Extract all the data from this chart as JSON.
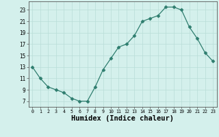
{
  "x": [
    0,
    1,
    2,
    3,
    4,
    5,
    6,
    7,
    8,
    9,
    10,
    11,
    12,
    13,
    14,
    15,
    16,
    17,
    18,
    19,
    20,
    21,
    22,
    23
  ],
  "y": [
    13,
    11,
    9.5,
    9,
    8.5,
    7.5,
    7,
    7,
    9.5,
    12.5,
    14.5,
    16.5,
    17,
    18.5,
    21,
    21.5,
    22,
    23.5,
    23.5,
    23,
    20,
    18,
    15.5,
    14
  ],
  "line_color": "#2e7d6e",
  "marker": "D",
  "marker_size": 2.5,
  "bg_color": "#d4f0ec",
  "grid_color": "#b8ddd7",
  "xlabel": "Humidex (Indice chaleur)",
  "xlabel_fontsize": 7.5,
  "ytick_labels": [
    "7",
    "9",
    "11",
    "13",
    "15",
    "17",
    "19",
    "21",
    "23"
  ],
  "yticks": [
    7,
    9,
    11,
    13,
    15,
    17,
    19,
    21,
    23
  ],
  "xtick_labels": [
    "0",
    "1",
    "2",
    "3",
    "4",
    "5",
    "6",
    "7",
    "8",
    "9",
    "10",
    "11",
    "12",
    "13",
    "14",
    "15",
    "16",
    "17",
    "18",
    "19",
    "20",
    "21",
    "22",
    "23"
  ],
  "xticks": [
    0,
    1,
    2,
    3,
    4,
    5,
    6,
    7,
    8,
    9,
    10,
    11,
    12,
    13,
    14,
    15,
    16,
    17,
    18,
    19,
    20,
    21,
    22,
    23
  ],
  "xlim": [
    -0.5,
    23.5
  ],
  "ylim": [
    6,
    24.5
  ]
}
